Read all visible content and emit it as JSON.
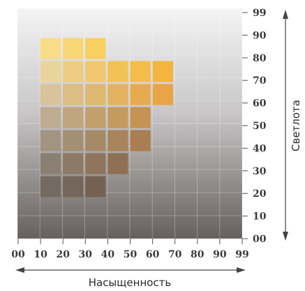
{
  "chart_data": {
    "type": "heatmap",
    "title": "",
    "xlabel": "Насыщенность",
    "ylabel": "Светлота",
    "x_ticks": [
      "00",
      "10",
      "20",
      "30",
      "40",
      "50",
      "60",
      "70",
      "80",
      "90",
      "99"
    ],
    "y_ticks": [
      "99",
      "90",
      "80",
      "70",
      "60",
      "50",
      "40",
      "30",
      "20",
      "10",
      "00"
    ],
    "xlim": [
      0,
      99
    ],
    "ylim": [
      0,
      99
    ],
    "grid": true,
    "background": {
      "top_color": "#f4f4f4",
      "bottom_color": "#66605d"
    },
    "cells": [
      {
        "x": 10,
        "y": 80,
        "color": "#f9dc87"
      },
      {
        "x": 20,
        "y": 80,
        "color": "#f9d675"
      },
      {
        "x": 30,
        "y": 80,
        "color": "#f8d060"
      },
      {
        "x": 10,
        "y": 70,
        "color": "#e9d49c"
      },
      {
        "x": 20,
        "y": 70,
        "color": "#eccd82"
      },
      {
        "x": 30,
        "y": 70,
        "color": "#efc76e"
      },
      {
        "x": 40,
        "y": 70,
        "color": "#f3c256"
      },
      {
        "x": 50,
        "y": 70,
        "color": "#f4bc4a"
      },
      {
        "x": 60,
        "y": 70,
        "color": "#f3b53f"
      },
      {
        "x": 10,
        "y": 60,
        "color": "#d9c39a"
      },
      {
        "x": 20,
        "y": 60,
        "color": "#dcbd83"
      },
      {
        "x": 30,
        "y": 60,
        "color": "#dfb872"
      },
      {
        "x": 40,
        "y": 60,
        "color": "#e3b25f"
      },
      {
        "x": 50,
        "y": 60,
        "color": "#e6ab4f"
      },
      {
        "x": 60,
        "y": 60,
        "color": "#e7a544"
      },
      {
        "x": 10,
        "y": 50,
        "color": "#bdac90"
      },
      {
        "x": 20,
        "y": 50,
        "color": "#bfa67d"
      },
      {
        "x": 30,
        "y": 50,
        "color": "#c2a06c"
      },
      {
        "x": 40,
        "y": 50,
        "color": "#c59a5e"
      },
      {
        "x": 50,
        "y": 50,
        "color": "#c69353"
      },
      {
        "x": 10,
        "y": 40,
        "color": "#a19581"
      },
      {
        "x": 20,
        "y": 40,
        "color": "#a38f72"
      },
      {
        "x": 30,
        "y": 40,
        "color": "#a58a66"
      },
      {
        "x": 40,
        "y": 40,
        "color": "#a7845b"
      },
      {
        "x": 50,
        "y": 40,
        "color": "#a87e52"
      },
      {
        "x": 10,
        "y": 30,
        "color": "#8a8072"
      },
      {
        "x": 20,
        "y": 30,
        "color": "#8c7a66"
      },
      {
        "x": 30,
        "y": 30,
        "color": "#8e755c"
      },
      {
        "x": 40,
        "y": 30,
        "color": "#8f7054"
      },
      {
        "x": 10,
        "y": 20,
        "color": "#736b62"
      },
      {
        "x": 20,
        "y": 20,
        "color": "#74665a"
      },
      {
        "x": 30,
        "y": 20,
        "color": "#756152"
      }
    ]
  }
}
